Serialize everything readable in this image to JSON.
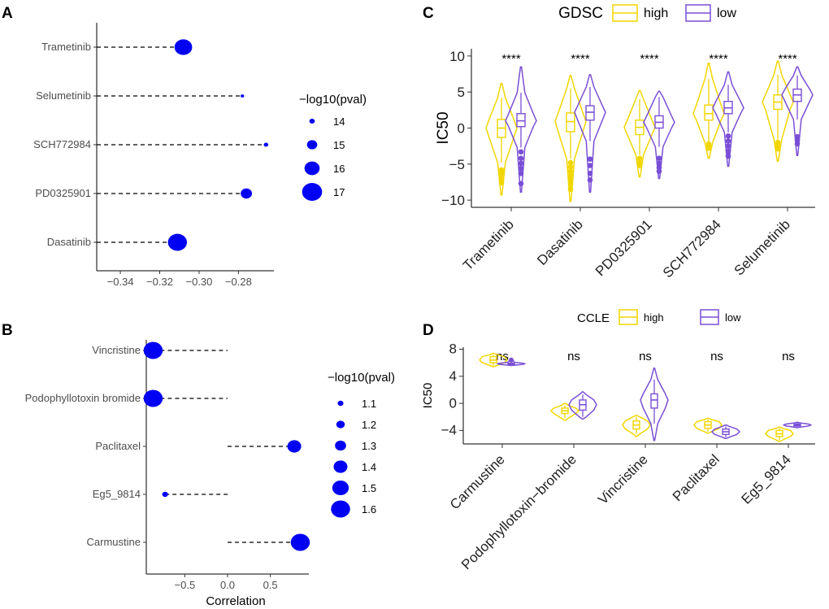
{
  "colors": {
    "point": "#0000f2",
    "high": "#f2d600",
    "low": "#7a4fd6"
  },
  "panels": {
    "A": "A",
    "B": "B",
    "C": "C",
    "D": "D"
  },
  "chart_data": [
    {
      "id": "A",
      "type": "scatter",
      "title": "",
      "xlabel": "",
      "ylabel": "",
      "xlim": [
        -0.352,
        -0.262
      ],
      "xticks": [
        -0.34,
        -0.32,
        -0.3,
        -0.28
      ],
      "xtick_labels": [
        "−0.34",
        "−0.32",
        "−0.30",
        "−0.28"
      ],
      "dash_origin": "-0.352",
      "categories": [
        "Trametinib",
        "Selumetinib",
        "SCH772984",
        "PD0325901",
        "Dasatinib"
      ],
      "values": [
        -0.308,
        -0.278,
        -0.266,
        -0.276,
        -0.311
      ],
      "size_values": [
        16.5,
        13.6,
        13.8,
        15.2,
        16.8
      ],
      "legend": {
        "title": "−log10(pval)",
        "entries": [
          "14",
          "15",
          "16",
          "17"
        ],
        "values": [
          14,
          15,
          16,
          17
        ]
      }
    },
    {
      "id": "B",
      "type": "scatter",
      "title": "",
      "xlabel": "Correlation",
      "ylabel": "",
      "xlim": [
        -0.95,
        0.95
      ],
      "xticks": [
        -0.5,
        0.0,
        0.5
      ],
      "xtick_labels": [
        "−0.5",
        "0.0",
        "0.5"
      ],
      "dash_origin": "0",
      "categories": [
        "Vincristine",
        "Podophyllotoxin bromide",
        "Paclitaxel",
        "Eg5_9814",
        "Carmustine"
      ],
      "values": [
        -0.87,
        -0.87,
        0.78,
        -0.73,
        0.85
      ],
      "size_values": [
        1.6,
        1.6,
        1.4,
        1.1,
        1.6
      ],
      "legend": {
        "title": "−log10(pval)",
        "entries": [
          "1.1",
          "1.2",
          "1.3",
          "1.4",
          "1.5",
          "1.6"
        ],
        "values": [
          1.1,
          1.2,
          1.3,
          1.4,
          1.5,
          1.6
        ]
      }
    },
    {
      "id": "C",
      "type": "violin",
      "title": "",
      "xlabel": "",
      "ylabel": "IC50",
      "ylim": [
        -11,
        11
      ],
      "yticks": [
        -10,
        -5,
        0,
        5,
        10
      ],
      "legend": {
        "title": "GDSC",
        "entries": [
          "high",
          "low"
        ]
      },
      "categories": [
        "Trametinib",
        "Dasatinib",
        "PD0325901",
        "SCH772984",
        "Selumetinib"
      ],
      "significance": [
        "****",
        "****",
        "****",
        "****",
        "****"
      ],
      "series": [
        {
          "name": "high",
          "stats": [
            {
              "min": -9.3,
              "q1": -1.3,
              "median": 0.0,
              "q3": 1.2,
              "max": 6.2,
              "whisker_low": -4.8,
              "whisker_high": 4.2,
              "outliers": [
                -5.8,
                -6.2,
                -6.8,
                -7.3,
                -7.6
              ]
            },
            {
              "min": -10.2,
              "q1": -0.5,
              "median": 0.9,
              "q3": 2.1,
              "max": 7.3,
              "whisker_low": -4.3,
              "whisker_high": 5.5,
              "outliers": [
                -4.8,
                -5.4,
                -6.0,
                -6.6,
                -7.2,
                -7.8,
                -8.5
              ]
            },
            {
              "min": -6.8,
              "q1": -0.9,
              "median": 0.1,
              "q3": 1.1,
              "max": 5.2,
              "whisker_low": -3.7,
              "whisker_high": 4.0,
              "outliers": [
                -4.2,
                -4.7,
                -5.2
              ]
            },
            {
              "min": -4.2,
              "q1": 1.1,
              "median": 2.0,
              "q3": 3.2,
              "max": 9.0,
              "whisker_low": -2.0,
              "whisker_high": 6.8,
              "outliers": [
                -2.2,
                -2.5,
                -2.8
              ]
            },
            {
              "min": -4.6,
              "q1": 2.6,
              "median": 3.6,
              "q3": 4.6,
              "max": 9.3,
              "whisker_low": -1.6,
              "whisker_high": 7.4,
              "outliers": [
                -2.0,
                -2.4,
                -2.9
              ]
            }
          ]
        },
        {
          "name": "low",
          "stats": [
            {
              "min": -8.9,
              "q1": 0.2,
              "median": 1.0,
              "q3": 2.0,
              "max": 8.5,
              "whisker_low": -2.7,
              "whisker_high": 4.9,
              "outliers": [
                -3.3,
                -4.2,
                -4.9,
                -5.6,
                -6.3,
                -7.7
              ]
            },
            {
              "min": -8.9,
              "q1": 1.1,
              "median": 2.2,
              "q3": 3.1,
              "max": 7.4,
              "whisker_low": -1.8,
              "whisker_high": 5.7,
              "outliers": [
                -4.3,
                -5.2,
                -6.3,
                -7.2
              ]
            },
            {
              "min": -7.0,
              "q1": 0.0,
              "median": 0.8,
              "q3": 1.7,
              "max": 5.1,
              "whisker_low": -2.6,
              "whisker_high": 4.3,
              "outliers": [
                -4.2,
                -4.9,
                -5.5,
                -6.0
              ]
            },
            {
              "min": -5.3,
              "q1": 2.0,
              "median": 2.8,
              "q3": 3.7,
              "max": 7.8,
              "whisker_low": -0.6,
              "whisker_high": 6.0,
              "outliers": [
                -1.1,
                -1.8,
                -2.5,
                -3.2,
                -3.9
              ]
            },
            {
              "min": -3.8,
              "q1": 3.7,
              "median": 4.6,
              "q3": 5.4,
              "max": 8.5,
              "whisker_low": 1.2,
              "whisker_high": 7.3,
              "outliers": [
                -1.2,
                -1.7,
                -2.2
              ]
            }
          ]
        }
      ]
    },
    {
      "id": "D",
      "type": "violin",
      "title": "",
      "xlabel": "",
      "ylabel": "IC50",
      "ylim": [
        -6,
        8.3
      ],
      "yticks": [
        -4,
        0,
        4,
        8
      ],
      "legend": {
        "title": "CCLE",
        "entries": [
          "high",
          "low"
        ]
      },
      "categories": [
        "Carmustine",
        "Podophyllotoxin−bromide",
        "Vincristine",
        "Paclitaxel",
        "Eg5_9814"
      ],
      "significance": [
        "ns",
        "ns",
        "ns",
        "ns",
        "ns"
      ],
      "series": [
        {
          "name": "high",
          "stats": [
            {
              "min": 5.4,
              "q1": 6.0,
              "median": 6.4,
              "q3": 6.9,
              "max": 7.4,
              "whisker_low": 5.6,
              "whisker_high": 7.2,
              "outliers": []
            },
            {
              "min": -2.5,
              "q1": -1.5,
              "median": -1.1,
              "q3": -0.7,
              "max": 0.0,
              "whisker_low": -2.2,
              "whisker_high": -0.3,
              "outliers": []
            },
            {
              "min": -4.9,
              "q1": -3.8,
              "median": -3.2,
              "q3": -2.6,
              "max": -1.8,
              "whisker_low": -4.5,
              "whisker_high": -2.0,
              "outliers": []
            },
            {
              "min": -4.4,
              "q1": -3.7,
              "median": -3.2,
              "q3": -2.7,
              "max": -2.2,
              "whisker_low": -4.2,
              "whisker_high": -2.4,
              "outliers": []
            },
            {
              "min": -5.6,
              "q1": -4.9,
              "median": -4.5,
              "q3": -4.0,
              "max": -3.5,
              "whisker_low": -5.4,
              "whisker_high": -3.7,
              "outliers": []
            }
          ]
        },
        {
          "name": "low",
          "stats": [
            {
              "min": 5.6,
              "q1": 5.75,
              "median": 5.85,
              "q3": 5.95,
              "max": 6.6,
              "whisker_low": 5.65,
              "whisker_high": 6.05,
              "outliers": [
                6.4
              ]
            },
            {
              "min": -2.3,
              "q1": -1.0,
              "median": -0.2,
              "q3": 0.5,
              "max": 1.7,
              "whisker_low": -2.0,
              "whisker_high": 1.3,
              "outliers": []
            },
            {
              "min": -5.5,
              "q1": -0.7,
              "median": 0.5,
              "q3": 1.4,
              "max": 5.2,
              "whisker_low": -3.0,
              "whisker_high": 3.5,
              "outliers": []
            },
            {
              "min": -5.2,
              "q1": -4.6,
              "median": -4.2,
              "q3": -3.8,
              "max": -3.2,
              "whisker_low": -5.0,
              "whisker_high": -3.4,
              "outliers": []
            },
            {
              "min": -3.6,
              "q1": -3.35,
              "median": -3.2,
              "q3": -3.05,
              "max": -2.8,
              "whisker_low": -3.5,
              "whisker_high": -2.9,
              "outliers": []
            }
          ]
        }
      ]
    }
  ]
}
